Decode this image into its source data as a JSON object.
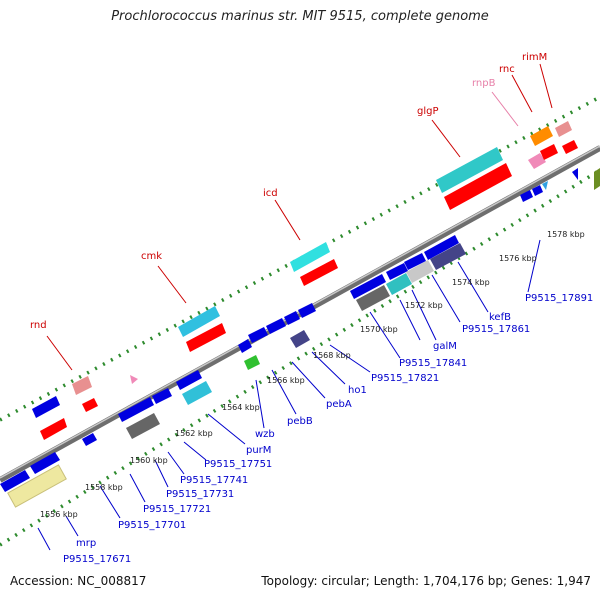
{
  "title": "Prochlorococcus marinus str. MIT 9515, complete genome",
  "footer": {
    "accession": "Accession: NC_008817",
    "summary": "Topology: circular; Length: 1,704,176 bp; Genes: 1,947"
  },
  "colors": {
    "backbone": "#8c8c8c",
    "ticks": "#2e8b2e",
    "locus_label": "#0000cc",
    "gene_label": "#cc0000",
    "rna_label": "#e77fa8",
    "cds": "#0000e0",
    "cds_dark": "#444488",
    "cds_gray": "#666666",
    "rrna": "#ff0000",
    "cyan": "#30c0c0"
  },
  "kbp_labels": [
    "1556 kbp",
    "1558 kbp",
    "1560 kbp",
    "1562 kbp",
    "1564 kbp",
    "1566 kbp",
    "1568 kbp",
    "1570 kbp",
    "1572 kbp",
    "1574 kbp",
    "1576 kbp",
    "1578 kbp"
  ],
  "gene_labels": [
    "rnd",
    "cmk",
    "icd",
    "glgP",
    "rnc",
    "rimM"
  ],
  "rna_labels": [
    "rnpB"
  ],
  "locus_labels": [
    "P9515_17671",
    "mrp",
    "P9515_17701",
    "P9515_17721",
    "P9515_17731",
    "P9515_17741",
    "P9515_17751",
    "purM",
    "wzb",
    "pebB",
    "pebA",
    "ho1",
    "P9515_17821",
    "P9515_17841",
    "galM",
    "P9515_17861",
    "kefB",
    "P9515_17891"
  ]
}
